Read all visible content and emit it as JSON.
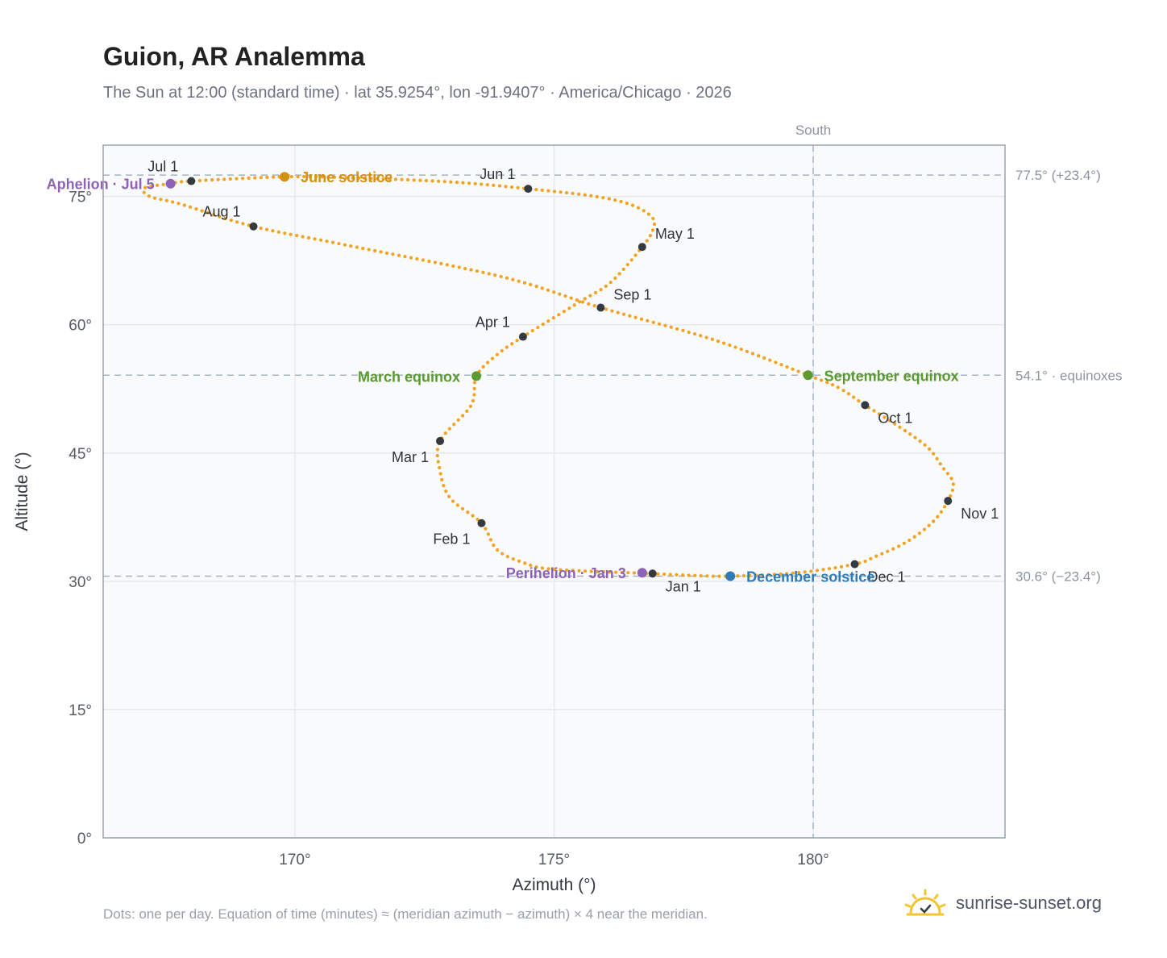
{
  "title": "Guion, AR Analemma",
  "subtitle": "The Sun at 12:00 (standard time) · lat 35.9254°, lon -91.9407° · America/Chicago · 2026",
  "footnote": "Dots: one per day. Equation of time (minutes) ≈ (meridian azimuth − azimuth) × 4 near the meridian.",
  "brand": {
    "name": "sunrise-sunset.org",
    "icon": "sun-logo-icon",
    "color": "#f4c430"
  },
  "chart_data": {
    "type": "scatter",
    "xlabel": "Azimuth (°)",
    "ylabel": "Altitude (°)",
    "xlim": [
      166.3,
      183.7
    ],
    "ylim": [
      0,
      81
    ],
    "xticks": [
      {
        "value": 170,
        "label": "170°"
      },
      {
        "value": 175,
        "label": "175°"
      },
      {
        "value": 180,
        "label": "180°"
      }
    ],
    "yticks": [
      {
        "value": 0,
        "label": "0°"
      },
      {
        "value": 15,
        "label": "15°"
      },
      {
        "value": 30,
        "label": "30°"
      },
      {
        "value": 45,
        "label": "45°"
      },
      {
        "value": 60,
        "label": "60°"
      },
      {
        "value": 75,
        "label": "75°"
      }
    ],
    "grid": true,
    "south": {
      "azimuth": 180,
      "label": "South"
    },
    "ref_lines": [
      {
        "altitude": 77.5,
        "label": "77.5° (+23.4°)"
      },
      {
        "altitude": 54.1,
        "label": "54.1° · equinoxes"
      },
      {
        "altitude": 30.6,
        "label": "30.6° (−23.4°)"
      }
    ],
    "path_color": "#f2a321",
    "marker_color": "#343a40",
    "series": [
      {
        "values": [
          [
            176.9,
            30.9
          ],
          [
            175.0,
            31.4
          ],
          [
            174.4,
            32.2
          ],
          [
            173.9,
            33.7
          ],
          [
            173.6,
            36.8
          ],
          [
            173.0,
            39.7
          ],
          [
            172.8,
            42.9
          ],
          [
            172.8,
            46.4
          ],
          [
            173.4,
            50.6
          ],
          [
            173.5,
            54.0
          ],
          [
            173.9,
            56.5
          ],
          [
            174.4,
            58.6
          ],
          [
            175.5,
            62.7
          ],
          [
            176.1,
            65.0
          ],
          [
            176.7,
            69.1
          ],
          [
            176.9,
            71.0
          ],
          [
            176.9,
            72.5
          ],
          [
            176.5,
            74.0
          ],
          [
            175.8,
            75.0
          ],
          [
            174.5,
            75.9
          ],
          [
            173.0,
            76.7
          ],
          [
            171.0,
            77.2
          ],
          [
            169.8,
            77.3
          ],
          [
            168.0,
            76.8
          ],
          [
            167.6,
            76.5
          ],
          [
            167.1,
            76.0
          ],
          [
            167.2,
            75.0
          ],
          [
            167.8,
            74.1
          ],
          [
            169.2,
            71.5
          ],
          [
            171.0,
            69.3
          ],
          [
            174.0,
            65.6
          ],
          [
            175.9,
            62.0
          ],
          [
            178.1,
            58.2
          ],
          [
            179.9,
            54.1
          ],
          [
            180.5,
            52.6
          ],
          [
            181.0,
            50.6
          ],
          [
            181.6,
            48.3
          ],
          [
            182.2,
            45.7
          ],
          [
            182.5,
            43.3
          ],
          [
            182.7,
            41.5
          ],
          [
            182.6,
            39.4
          ],
          [
            182.3,
            36.9
          ],
          [
            181.8,
            34.6
          ],
          [
            181.2,
            32.9
          ],
          [
            180.8,
            32.0
          ],
          [
            179.7,
            31.0
          ],
          [
            178.4,
            30.6
          ],
          [
            177.6,
            30.7
          ],
          [
            176.9,
            30.9
          ]
        ]
      }
    ],
    "month_markers": [
      {
        "label": "Jan 1",
        "x": 176.9,
        "y": 30.9,
        "anchor": "below-right"
      },
      {
        "label": "Feb 1",
        "x": 173.6,
        "y": 36.8,
        "anchor": "below-left"
      },
      {
        "label": "Mar 1",
        "x": 172.8,
        "y": 46.4,
        "anchor": "below-left"
      },
      {
        "label": "Apr 1",
        "x": 174.4,
        "y": 58.6,
        "anchor": "above-left"
      },
      {
        "label": "May 1",
        "x": 176.7,
        "y": 69.1,
        "anchor": "above-right"
      },
      {
        "label": "Jun 1",
        "x": 174.5,
        "y": 75.9,
        "anchor": "above-left"
      },
      {
        "label": "Jul 1",
        "x": 168.0,
        "y": 76.8,
        "anchor": "above-left"
      },
      {
        "label": "Aug 1",
        "x": 169.2,
        "y": 71.5,
        "anchor": "above-left"
      },
      {
        "label": "Sep 1",
        "x": 175.9,
        "y": 62.0,
        "anchor": "above-right"
      },
      {
        "label": "Oct 1",
        "x": 181.0,
        "y": 50.6,
        "anchor": "below-right"
      },
      {
        "label": "Nov 1",
        "x": 182.6,
        "y": 39.4,
        "anchor": "below-right"
      },
      {
        "label": "Dec 1",
        "x": 180.8,
        "y": 32.0,
        "anchor": "below-right"
      }
    ],
    "events": [
      {
        "label": "June solstice",
        "x": 169.8,
        "y": 77.3,
        "color": "#d4900f",
        "side": "right"
      },
      {
        "label": "March equinox",
        "x": 173.5,
        "y": 54.0,
        "color": "#5a9a2e",
        "side": "left"
      },
      {
        "label": "September equinox",
        "x": 179.9,
        "y": 54.1,
        "color": "#5a9a2e",
        "side": "right"
      },
      {
        "label": "December solstice",
        "x": 178.4,
        "y": 30.6,
        "color": "#2f7ab8",
        "side": "right"
      },
      {
        "label": "Aphelion · Jul 5",
        "x": 167.6,
        "y": 76.5,
        "color": "#8e63b5",
        "side": "left"
      },
      {
        "label": "Perihelion · Jan 3",
        "x": 176.7,
        "y": 31.0,
        "color": "#8e63b5",
        "side": "left"
      }
    ]
  }
}
